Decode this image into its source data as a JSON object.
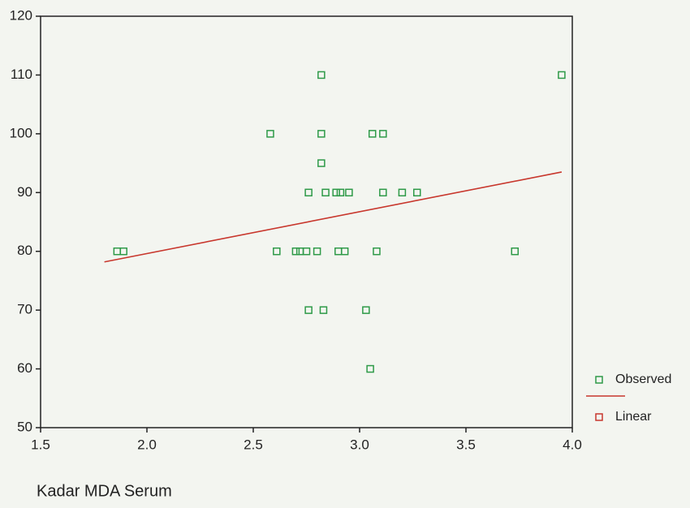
{
  "chart_data": {
    "type": "scatter",
    "x_label": "Kadar MDA Serum",
    "xlim": [
      1.5,
      4.0
    ],
    "xticks": [
      1.5,
      {
        "value": 2,
        "label": "2.0"
      },
      2.5,
      {
        "value": 3,
        "label": "3.0"
      },
      3.5,
      {
        "value": 4,
        "label": "4.0"
      }
    ],
    "ylim": [
      50,
      120
    ],
    "yticks": [
      50,
      60,
      70,
      80,
      90,
      100,
      110,
      120
    ],
    "legend": "right",
    "series": [
      {
        "name": "Observed",
        "type": "scatter",
        "color": "#2e9a48",
        "x": [
          1.86,
          1.89,
          2.58,
          2.61,
          2.7,
          2.72,
          2.75,
          2.8,
          2.76,
          2.83,
          2.82,
          2.82,
          2.82,
          2.76,
          2.84,
          2.89,
          2.91,
          2.95,
          2.9,
          2.93,
          3.03,
          3.05,
          3.06,
          3.11,
          3.08,
          3.11,
          3.2,
          3.27,
          3.73,
          3.95
        ],
        "values": [
          80,
          80,
          100,
          80,
          80,
          80,
          80,
          80,
          70,
          70,
          110,
          100,
          95,
          90,
          90,
          90,
          90,
          90,
          80,
          80,
          70,
          60,
          100,
          100,
          80,
          90,
          90,
          90,
          80,
          110
        ]
      },
      {
        "name": "Linear",
        "type": "line",
        "color": "#c8372d",
        "x": [
          1.8,
          3.95
        ],
        "values": [
          78.2,
          93.5
        ]
      }
    ]
  }
}
